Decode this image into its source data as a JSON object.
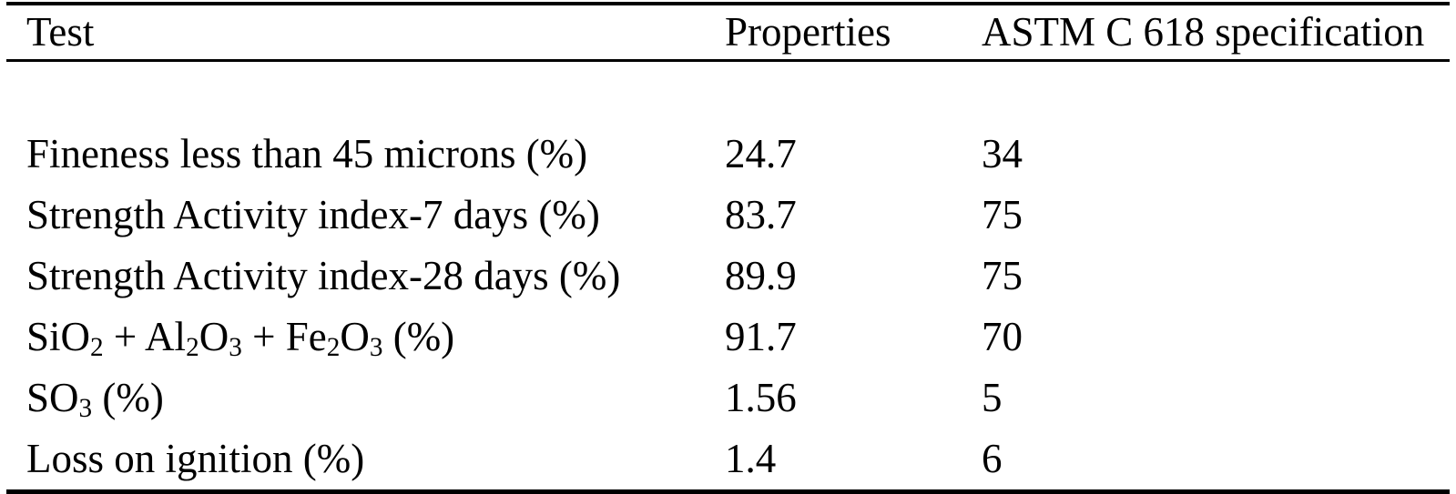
{
  "table": {
    "title_hint": "Fly ash properties versus ASTM C 618 specification",
    "colors": {
      "text": "#000000",
      "background": "#ffffff",
      "rule": "#000000"
    },
    "columns": [
      {
        "label": "Test"
      },
      {
        "label": "Properties"
      },
      {
        "label": "ASTM C 618 specification"
      }
    ],
    "rows": [
      {
        "test": [
          {
            "t": "Fineness less than 45 microns (%)"
          }
        ],
        "properties": "24.7",
        "spec": "34"
      },
      {
        "test": [
          {
            "t": "Strength Activity index-7 days (%)"
          }
        ],
        "properties": "83.7",
        "spec": "75"
      },
      {
        "test": [
          {
            "t": "Strength Activity index-28 days (%)"
          }
        ],
        "properties": "89.9",
        "spec": "75"
      },
      {
        "test": [
          {
            "t": "SiO"
          },
          {
            "t": "2",
            "sub": true
          },
          {
            "t": " + Al"
          },
          {
            "t": "2",
            "sub": true
          },
          {
            "t": "O"
          },
          {
            "t": "3",
            "sub": true
          },
          {
            "t": " + Fe"
          },
          {
            "t": "2",
            "sub": true
          },
          {
            "t": "O"
          },
          {
            "t": "3",
            "sub": true
          },
          {
            "t": " (%)"
          }
        ],
        "properties": "91.7",
        "spec": "70"
      },
      {
        "test": [
          {
            "t": "SO"
          },
          {
            "t": "3",
            "sub": true
          },
          {
            "t": " (%)"
          }
        ],
        "properties": "1.56",
        "spec": "5"
      },
      {
        "test": [
          {
            "t": "Loss on ignition (%)"
          }
        ],
        "properties": "1.4",
        "spec": "6"
      }
    ]
  }
}
